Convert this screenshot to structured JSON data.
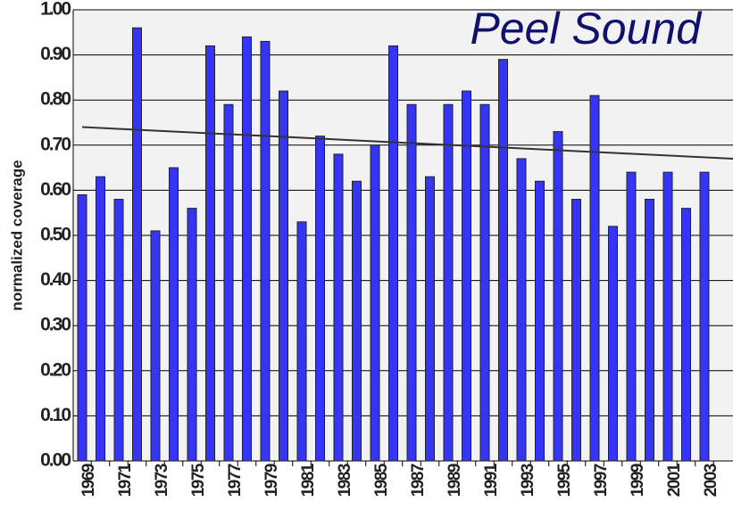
{
  "chart_data": {
    "type": "bar",
    "title": "Peel Sound",
    "y_label": "normalized coverage",
    "categories": [
      "1969",
      null,
      "1971",
      null,
      "1973",
      null,
      "1975",
      null,
      "1977",
      null,
      "1979",
      null,
      "1981",
      null,
      "1983",
      null,
      "1985",
      null,
      "1987",
      null,
      "1989",
      null,
      "1991",
      null,
      "1993",
      null,
      "1995",
      null,
      "1997",
      null,
      "1999",
      null,
      "2001",
      null,
      "2003"
    ],
    "values": [
      0.59,
      0.63,
      0.58,
      0.96,
      0.51,
      0.65,
      0.56,
      0.92,
      0.79,
      0.94,
      0.93,
      0.82,
      0.53,
      0.72,
      0.68,
      0.62,
      0.7,
      0.92,
      0.79,
      0.63,
      0.79,
      0.82,
      0.79,
      0.89,
      0.67,
      0.62,
      0.73,
      0.58,
      0.81,
      0.52,
      0.64,
      0.58,
      0.64,
      0.56,
      0.64
    ],
    "color": "#3535f5",
    "trend": [
      0.74,
      0.67
    ],
    "ylim": [
      0,
      1
    ],
    "yticks": [
      {
        "value": 0,
        "label": "0.00"
      },
      {
        "value": 0.1,
        "label": "0.10"
      },
      {
        "value": 0.2,
        "label": "0.20"
      },
      {
        "value": 0.3,
        "label": "0.30"
      },
      {
        "value": 0.4,
        "label": "0.40"
      },
      {
        "value": 0.5,
        "label": "0.50"
      },
      {
        "value": 0.6,
        "label": "0.60"
      },
      {
        "value": 0.7,
        "label": "0.70"
      },
      {
        "value": 0.8,
        "label": "0.80"
      },
      {
        "value": 0.9,
        "label": "0.90"
      },
      {
        "value": 1,
        "label": "1.00"
      }
    ],
    "grid": true
  }
}
